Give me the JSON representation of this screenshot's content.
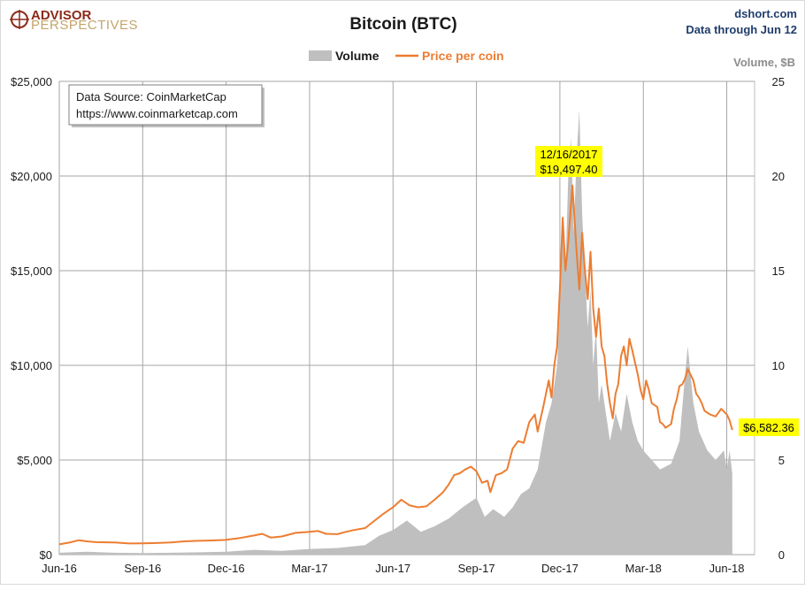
{
  "logo": {
    "line1": "ADVISOR",
    "line2": "PERSPECTIVES"
  },
  "header": {
    "title": "Bitcoin (BTC)",
    "site": "dshort.com",
    "through": "Data through Jun 12"
  },
  "legend": {
    "volume": "Volume",
    "price": "Price per coin"
  },
  "source_note": {
    "line1": "Data Source: CoinMarketCap",
    "line2": "https://www.coinmarketcap.com"
  },
  "peak_callout": {
    "date": "12/16/2017",
    "value": "$19,497.40"
  },
  "last_callout": {
    "value": "$6,582.36"
  },
  "colors": {
    "price": "#ed7d31",
    "volume": "#bfbfbf",
    "callout": "#ffff00",
    "grid": "#a6a6a6"
  },
  "chart_data": {
    "type": "area",
    "x_unit": "month index (0 = Jun-16)",
    "x_range": [
      0,
      25
    ],
    "x_ticks": [
      {
        "label": "Jun-16",
        "x": 0
      },
      {
        "label": "Sep-16",
        "x": 3
      },
      {
        "label": "Dec-16",
        "x": 6
      },
      {
        "label": "Mar-17",
        "x": 9
      },
      {
        "label": "Jun-17",
        "x": 12
      },
      {
        "label": "Sep-17",
        "x": 15
      },
      {
        "label": "Dec-17",
        "x": 18
      },
      {
        "label": "Mar-18",
        "x": 21
      },
      {
        "label": "Jun-18",
        "x": 24
      }
    ],
    "y_left": {
      "min": 0,
      "max": 25000,
      "ticks": [
        "$0",
        "$5,000",
        "$10,000",
        "$15,000",
        "$20,000",
        "$25,000"
      ]
    },
    "y_right": {
      "label": "Volume, $B",
      "min": 0,
      "max": 25,
      "ticks": [
        "0",
        "5",
        "10",
        "15",
        "20",
        "25"
      ]
    },
    "grid": true,
    "legend_position": "top-center",
    "series": [
      {
        "name": "Price per coin",
        "axis": "left",
        "points": [
          [
            0.0,
            540
          ],
          [
            0.4,
            650
          ],
          [
            0.7,
            760
          ],
          [
            1.0,
            700
          ],
          [
            1.3,
            660
          ],
          [
            2.0,
            640
          ],
          [
            2.5,
            590
          ],
          [
            3.0,
            600
          ],
          [
            3.5,
            610
          ],
          [
            4.0,
            640
          ],
          [
            4.5,
            700
          ],
          [
            5.0,
            730
          ],
          [
            5.5,
            750
          ],
          [
            6.0,
            780
          ],
          [
            6.5,
            880
          ],
          [
            7.0,
            1010
          ],
          [
            7.3,
            1100
          ],
          [
            7.6,
            900
          ],
          [
            8.0,
            960
          ],
          [
            8.5,
            1150
          ],
          [
            9.0,
            1200
          ],
          [
            9.3,
            1250
          ],
          [
            9.6,
            1100
          ],
          [
            10.0,
            1080
          ],
          [
            10.3,
            1200
          ],
          [
            10.6,
            1300
          ],
          [
            11.0,
            1400
          ],
          [
            11.3,
            1750
          ],
          [
            11.6,
            2100
          ],
          [
            11.9,
            2400
          ],
          [
            12.0,
            2500
          ],
          [
            12.3,
            2900
          ],
          [
            12.6,
            2600
          ],
          [
            12.9,
            2500
          ],
          [
            13.2,
            2550
          ],
          [
            13.5,
            2900
          ],
          [
            13.8,
            3300
          ],
          [
            14.0,
            3700
          ],
          [
            14.2,
            4200
          ],
          [
            14.4,
            4300
          ],
          [
            14.6,
            4500
          ],
          [
            14.8,
            4650
          ],
          [
            15.0,
            4400
          ],
          [
            15.2,
            3800
          ],
          [
            15.4,
            3900
          ],
          [
            15.5,
            3300
          ],
          [
            15.7,
            4200
          ],
          [
            15.9,
            4300
          ],
          [
            16.1,
            4500
          ],
          [
            16.3,
            5600
          ],
          [
            16.5,
            6000
          ],
          [
            16.7,
            5900
          ],
          [
            16.9,
            7000
          ],
          [
            17.1,
            7400
          ],
          [
            17.2,
            6500
          ],
          [
            17.4,
            7800
          ],
          [
            17.6,
            9200
          ],
          [
            17.7,
            8300
          ],
          [
            17.8,
            10000
          ],
          [
            17.9,
            11000
          ],
          [
            18.0,
            14000
          ],
          [
            18.1,
            17800
          ],
          [
            18.2,
            15000
          ],
          [
            18.3,
            16500
          ],
          [
            18.45,
            19497.4
          ],
          [
            18.6,
            16000
          ],
          [
            18.7,
            14000
          ],
          [
            18.8,
            17000
          ],
          [
            18.9,
            15000
          ],
          [
            19.0,
            13500
          ],
          [
            19.1,
            16000
          ],
          [
            19.2,
            13000
          ],
          [
            19.3,
            11500
          ],
          [
            19.4,
            13000
          ],
          [
            19.5,
            11000
          ],
          [
            19.6,
            10500
          ],
          [
            19.7,
            9000
          ],
          [
            19.8,
            8000
          ],
          [
            19.9,
            7200
          ],
          [
            20.0,
            8500
          ],
          [
            20.1,
            9000
          ],
          [
            20.2,
            10500
          ],
          [
            20.3,
            11000
          ],
          [
            20.4,
            10000
          ],
          [
            20.5,
            11400
          ],
          [
            20.6,
            10800
          ],
          [
            20.8,
            9500
          ],
          [
            20.9,
            8700
          ],
          [
            21.0,
            8200
          ],
          [
            21.1,
            9200
          ],
          [
            21.2,
            8700
          ],
          [
            21.3,
            8000
          ],
          [
            21.5,
            7800
          ],
          [
            21.6,
            7000
          ],
          [
            21.7,
            6900
          ],
          [
            21.8,
            6700
          ],
          [
            22.0,
            6900
          ],
          [
            22.1,
            7700
          ],
          [
            22.2,
            8200
          ],
          [
            22.3,
            8900
          ],
          [
            22.4,
            9000
          ],
          [
            22.5,
            9300
          ],
          [
            22.6,
            9800
          ],
          [
            22.7,
            9500
          ],
          [
            22.8,
            9200
          ],
          [
            22.9,
            8500
          ],
          [
            23.0,
            8300
          ],
          [
            23.1,
            8000
          ],
          [
            23.2,
            7600
          ],
          [
            23.3,
            7500
          ],
          [
            23.4,
            7400
          ],
          [
            23.6,
            7300
          ],
          [
            23.8,
            7700
          ],
          [
            24.0,
            7400
          ],
          [
            24.1,
            7100
          ],
          [
            24.2,
            6582.36
          ]
        ]
      },
      {
        "name": "Volume",
        "axis": "right",
        "points": [
          [
            0.0,
            0.1
          ],
          [
            1.0,
            0.15
          ],
          [
            2.0,
            0.1
          ],
          [
            3.0,
            0.08
          ],
          [
            4.0,
            0.1
          ],
          [
            5.0,
            0.12
          ],
          [
            6.0,
            0.15
          ],
          [
            7.0,
            0.25
          ],
          [
            8.0,
            0.2
          ],
          [
            9.0,
            0.3
          ],
          [
            10.0,
            0.35
          ],
          [
            11.0,
            0.5
          ],
          [
            11.5,
            1.0
          ],
          [
            12.0,
            1.3
          ],
          [
            12.5,
            1.8
          ],
          [
            13.0,
            1.2
          ],
          [
            13.5,
            1.5
          ],
          [
            14.0,
            1.9
          ],
          [
            14.5,
            2.5
          ],
          [
            15.0,
            3.0
          ],
          [
            15.3,
            2.0
          ],
          [
            15.6,
            2.4
          ],
          [
            16.0,
            2.0
          ],
          [
            16.3,
            2.5
          ],
          [
            16.6,
            3.2
          ],
          [
            16.9,
            3.5
          ],
          [
            17.2,
            4.5
          ],
          [
            17.5,
            7.0
          ],
          [
            17.7,
            8.0
          ],
          [
            17.9,
            10.0
          ],
          [
            18.0,
            13.0
          ],
          [
            18.1,
            18.0
          ],
          [
            18.2,
            15.0
          ],
          [
            18.3,
            20.0
          ],
          [
            18.4,
            22.0
          ],
          [
            18.5,
            17.0
          ],
          [
            18.6,
            21.0
          ],
          [
            18.7,
            23.5
          ],
          [
            18.8,
            18.0
          ],
          [
            18.9,
            15.0
          ],
          [
            19.0,
            12.0
          ],
          [
            19.1,
            14.0
          ],
          [
            19.2,
            10.0
          ],
          [
            19.3,
            12.0
          ],
          [
            19.4,
            8.0
          ],
          [
            19.5,
            9.0
          ],
          [
            19.6,
            8.0
          ],
          [
            19.7,
            7.0
          ],
          [
            19.8,
            6.0
          ],
          [
            20.0,
            7.5
          ],
          [
            20.2,
            6.5
          ],
          [
            20.4,
            8.5
          ],
          [
            20.6,
            7.0
          ],
          [
            20.8,
            6.0
          ],
          [
            21.0,
            5.5
          ],
          [
            21.3,
            5.0
          ],
          [
            21.6,
            4.5
          ],
          [
            22.0,
            4.8
          ],
          [
            22.3,
            6.0
          ],
          [
            22.5,
            9.5
          ],
          [
            22.6,
            11.0
          ],
          [
            22.8,
            8.0
          ],
          [
            23.0,
            6.5
          ],
          [
            23.3,
            5.5
          ],
          [
            23.6,
            5.0
          ],
          [
            23.9,
            5.5
          ],
          [
            24.0,
            4.5
          ],
          [
            24.1,
            5.5
          ],
          [
            24.2,
            4.3
          ]
        ]
      }
    ]
  }
}
